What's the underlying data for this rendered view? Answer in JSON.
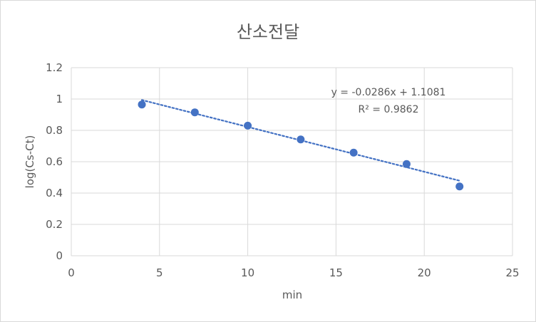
{
  "chart_data": {
    "type": "scatter",
    "title": "산소전달",
    "xlabel": "min",
    "ylabel": "log(Cs-Ct)",
    "xlim": [
      0,
      25
    ],
    "ylim": [
      0,
      1.2
    ],
    "x_ticks": [
      "0",
      "5",
      "10",
      "15",
      "20",
      "25"
    ],
    "y_ticks": [
      "0",
      "0.2",
      "0.4",
      "0.6",
      "0.8",
      "1",
      "1.2"
    ],
    "grid": true,
    "series": [
      {
        "x": [
          4,
          7,
          10,
          13,
          16,
          19,
          22
        ],
        "y": [
          0.965,
          0.915,
          0.83,
          0.742,
          0.658,
          0.585,
          0.442
        ],
        "color": "#4472c4"
      }
    ],
    "trendline": {
      "type": "linear",
      "slope": -0.0286,
      "intercept": 1.1081,
      "x_range": [
        4,
        22
      ],
      "color": "#4472c4",
      "equation": "y = -0.0286x + 1.1081",
      "r_squared": "R² = 0.9862"
    }
  }
}
